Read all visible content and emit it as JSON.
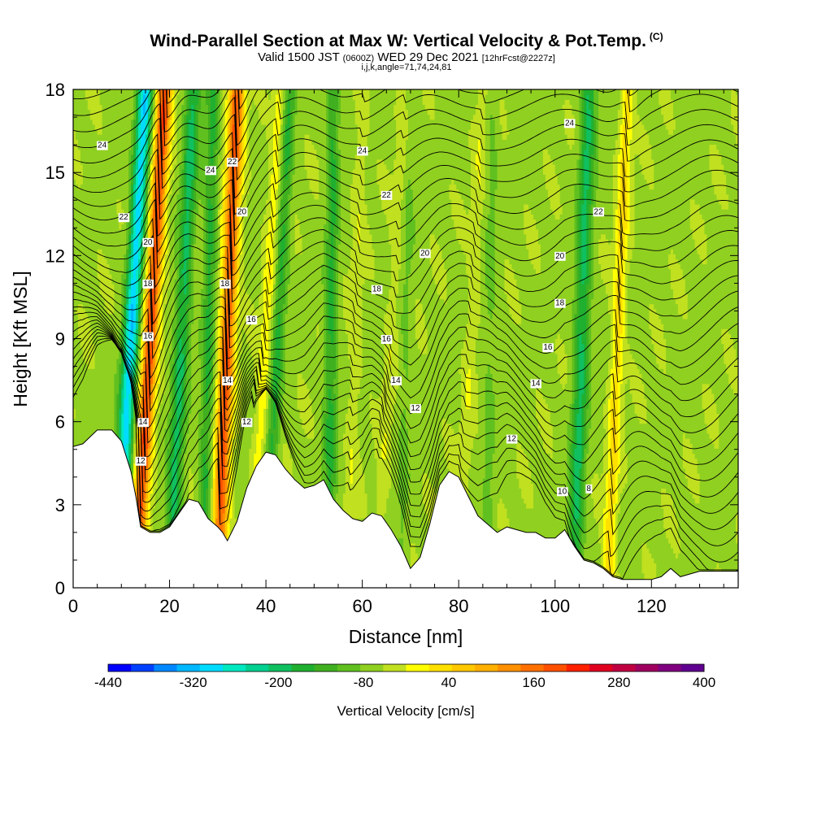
{
  "header": {
    "title": "Wind-Parallel Section at Max W: Vertical Velocity & Pot.Temp.",
    "title_suffix": "(C)",
    "valid_prefix": "Valid 1500 JST",
    "valid_utc": "(0600Z)",
    "valid_date": "WED 29 Dec 2021",
    "forecast": "[12hrFcst@2227z]",
    "indices": "i,j,k,angle=71,74,24,81"
  },
  "chart_data": {
    "type": "heatmap",
    "xlabel": "Distance [nm]",
    "ylabel": "Height [Kft MSL]",
    "xlim": [
      0,
      138
    ],
    "ylim": [
      0,
      18
    ],
    "x_ticks": [
      "0",
      "20",
      "40",
      "60",
      "80",
      "100",
      "120"
    ],
    "y_ticks": [
      "0",
      "3",
      "6",
      "9",
      "12",
      "15",
      "18"
    ],
    "colorbar": {
      "title": "Vertical Velocity [cm/s]",
      "min": -440,
      "max": 400,
      "step": 40,
      "tick_labels": [
        "-440",
        "-320",
        "-200",
        "-80",
        "40",
        "160",
        "280",
        "400"
      ],
      "colors": [
        "#0000ff",
        "#0040ff",
        "#0088ff",
        "#00b8ff",
        "#00dcff",
        "#00e8c0",
        "#00d090",
        "#10c060",
        "#20b030",
        "#40b020",
        "#60c020",
        "#90d020",
        "#c0e020",
        "#ffff00",
        "#ffe000",
        "#ffc800",
        "#ffb000",
        "#ff9000",
        "#ff7000",
        "#ff5000",
        "#ff2000",
        "#e00020",
        "#c00040",
        "#a00060",
        "#800080",
        "#600090"
      ]
    },
    "updraft_bands": [
      {
        "x_base": 13,
        "x_top": 19,
        "w_max": 320
      },
      {
        "x_base": 30,
        "x_top": 34,
        "w_max": 300
      },
      {
        "x_base": 37,
        "x_top": 43,
        "w_max": 80
      },
      {
        "x_base": 57,
        "x_top": 60,
        "w_max": 40
      },
      {
        "x_base": 63,
        "x_top": 69,
        "w_max": 40
      },
      {
        "x_base": 80,
        "x_top": 85,
        "w_max": 40
      },
      {
        "x_base": 111,
        "x_top": 115,
        "w_max": 120
      }
    ],
    "downdraft_bands": [
      {
        "x_base": 9,
        "x_top": 15,
        "w_min": -300
      },
      {
        "x_base": 20,
        "x_top": 25,
        "w_min": -160
      },
      {
        "x_base": 27,
        "x_top": 29,
        "w_min": -120
      },
      {
        "x_base": 40,
        "x_top": 45,
        "w_min": -120
      },
      {
        "x_base": 53,
        "x_top": 54,
        "w_min": -120
      },
      {
        "x_base": 68,
        "x_top": 70,
        "w_min": -40
      },
      {
        "x_base": 86,
        "x_top": 87,
        "w_min": -40
      },
      {
        "x_base": 104,
        "x_top": 107,
        "w_min": -160
      }
    ],
    "terrain": {
      "x": [
        0,
        2,
        5,
        8,
        10,
        12,
        13,
        14,
        16,
        18,
        20,
        22,
        24,
        26,
        28,
        30,
        31,
        32,
        34,
        36,
        38,
        40,
        42,
        44,
        46,
        48,
        50,
        52,
        54,
        56,
        58,
        60,
        62,
        64,
        66,
        68,
        70,
        72,
        74,
        76,
        78,
        80,
        82,
        84,
        86,
        88,
        90,
        92,
        94,
        96,
        98,
        100,
        102,
        104,
        106,
        108,
        110,
        112,
        114,
        116,
        118,
        120,
        122,
        124,
        126,
        128,
        130,
        132,
        134,
        136,
        138
      ],
      "y": [
        5.1,
        5.2,
        5.7,
        5.7,
        5.3,
        4.2,
        3.3,
        2.2,
        2.0,
        2.0,
        2.2,
        2.7,
        3.2,
        3.1,
        2.5,
        2.2,
        2.0,
        1.7,
        2.4,
        3.6,
        4.4,
        4.9,
        4.8,
        4.3,
        3.9,
        3.6,
        3.7,
        3.9,
        3.2,
        2.8,
        2.5,
        2.4,
        2.7,
        2.6,
        2.1,
        1.5,
        0.7,
        1.1,
        2.3,
        3.7,
        4.2,
        4.0,
        3.3,
        2.6,
        2.3,
        2.0,
        2.2,
        2.1,
        2.0,
        2.0,
        1.8,
        1.8,
        2.1,
        1.5,
        1.0,
        0.9,
        0.7,
        0.4,
        0.3,
        0.3,
        0.3,
        0.3,
        0.4,
        0.7,
        0.4,
        0.5,
        0.6,
        0.6,
        0.6,
        0.6,
        0.6
      ]
    },
    "theta_contours_C": [
      8,
      10,
      12,
      14,
      16,
      18,
      20,
      22,
      24
    ],
    "contour_labels": [
      {
        "text": "24",
        "x": 6,
        "y": 16.0
      },
      {
        "text": "22",
        "x": 10.5,
        "y": 13.4
      },
      {
        "text": "20",
        "x": 15.5,
        "y": 12.5
      },
      {
        "text": "18",
        "x": 15.5,
        "y": 11.0
      },
      {
        "text": "16",
        "x": 15.5,
        "y": 9.1
      },
      {
        "text": "14",
        "x": 14.5,
        "y": 6.0
      },
      {
        "text": "12",
        "x": 14,
        "y": 4.6
      },
      {
        "text": "24",
        "x": 28.5,
        "y": 15.1
      },
      {
        "text": "22",
        "x": 33,
        "y": 15.4
      },
      {
        "text": "20",
        "x": 35,
        "y": 13.6
      },
      {
        "text": "18",
        "x": 31.5,
        "y": 11.0
      },
      {
        "text": "16",
        "x": 37,
        "y": 9.7
      },
      {
        "text": "14",
        "x": 32,
        "y": 7.5
      },
      {
        "text": "12",
        "x": 36,
        "y": 6.0
      },
      {
        "text": "24",
        "x": 60,
        "y": 15.8
      },
      {
        "text": "22",
        "x": 65,
        "y": 14.2
      },
      {
        "text": "20",
        "x": 73,
        "y": 12.1
      },
      {
        "text": "18",
        "x": 63,
        "y": 10.8
      },
      {
        "text": "16",
        "x": 65,
        "y": 9.0
      },
      {
        "text": "14",
        "x": 67,
        "y": 7.5
      },
      {
        "text": "12",
        "x": 71,
        "y": 6.5
      },
      {
        "text": "24",
        "x": 103,
        "y": 16.8
      },
      {
        "text": "22",
        "x": 109,
        "y": 13.6
      },
      {
        "text": "20",
        "x": 101,
        "y": 12.0
      },
      {
        "text": "18",
        "x": 101,
        "y": 10.3
      },
      {
        "text": "16",
        "x": 98.5,
        "y": 8.7
      },
      {
        "text": "14",
        "x": 96,
        "y": 7.4
      },
      {
        "text": "12",
        "x": 91,
        "y": 5.4
      },
      {
        "text": "10",
        "x": 101.5,
        "y": 3.5
      },
      {
        "text": "8",
        "x": 107,
        "y": 3.6
      }
    ]
  }
}
